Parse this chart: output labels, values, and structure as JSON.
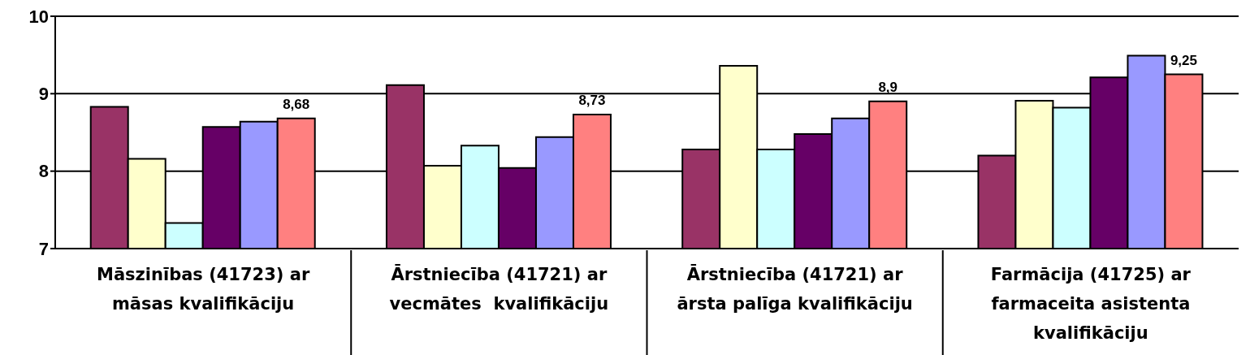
{
  "chart_data": {
    "type": "bar",
    "categories": [
      "Māszinības (41723) ar māsas kvalifikāciju",
      "Ārstniecība (41721) ar vecmātes  kvalifikāciju",
      "Ārstniecība (41721) ar ārsta palīga kvalifikāciju",
      "Farmācija (41725) ar farmaceita asistenta kvalifikāciju"
    ],
    "series": [
      {
        "color": "#993366",
        "values": [
          8.83,
          9.11,
          8.28,
          8.2
        ]
      },
      {
        "color": "#ffffcc",
        "values": [
          8.16,
          8.07,
          9.36,
          8.91
        ]
      },
      {
        "color": "#ccffff",
        "values": [
          7.33,
          8.33,
          8.28,
          8.82
        ]
      },
      {
        "color": "#660066",
        "values": [
          8.57,
          8.04,
          8.48,
          9.21
        ]
      },
      {
        "color": "#9999ff",
        "values": [
          8.64,
          8.44,
          8.68,
          9.49
        ]
      },
      {
        "color": "#ff8080",
        "values": [
          8.68,
          8.73,
          8.9,
          9.25
        ],
        "value_labels": [
          "8,68",
          "8,73",
          "8,9",
          "9,25"
        ]
      }
    ],
    "ylim": [
      7,
      10
    ],
    "yticks": [
      7,
      8,
      9,
      10
    ],
    "grid": "y"
  }
}
